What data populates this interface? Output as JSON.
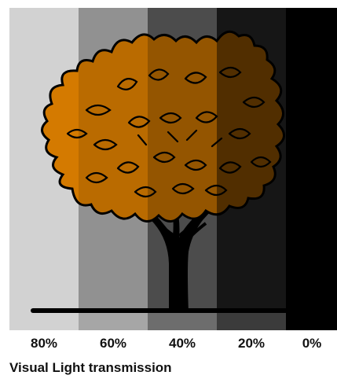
{
  "caption": "Visual Light transmission",
  "bands": [
    {
      "label": "80%",
      "transmission": 0.8,
      "color": "#d2d2d2"
    },
    {
      "label": "60%",
      "transmission": 0.6,
      "color": "#a6a6a6"
    },
    {
      "label": "40%",
      "transmission": 0.4,
      "color": "#6d6d6d"
    },
    {
      "label": "20%",
      "transmission": 0.2,
      "color": "#3b3b3b"
    },
    {
      "label": "0%",
      "transmission": 0.0,
      "color": "#000000"
    }
  ],
  "colors": {
    "foliage": "#d47a00",
    "outline": "#000000",
    "trunk": "#000000",
    "ground_line": "#000000"
  }
}
